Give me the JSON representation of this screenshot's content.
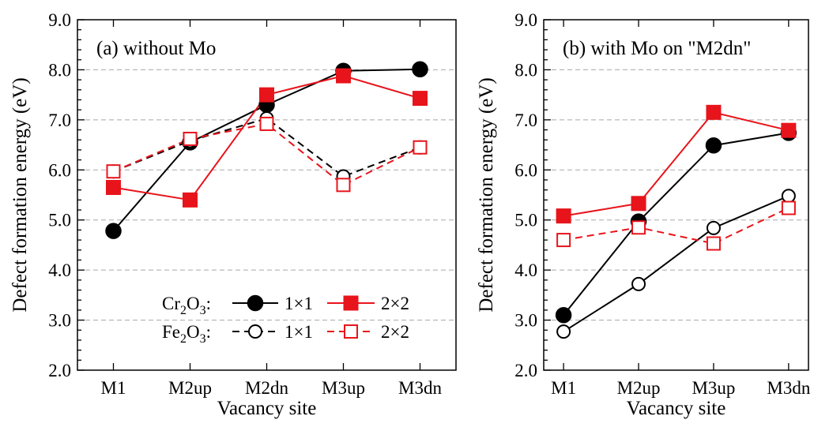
{
  "chart_data": [
    {
      "type": "line",
      "title": "(a) without Mo",
      "xlabel": "Vacancy site",
      "ylabel": "Defect formation energy (eV)",
      "categories": [
        "M1",
        "M2up",
        "M2dn",
        "M3up",
        "M3dn"
      ],
      "ylim": [
        2.0,
        9.0
      ],
      "yticks": [
        "2.0",
        "3.0",
        "4.0",
        "5.0",
        "6.0",
        "7.0",
        "8.0",
        "9.0"
      ],
      "grid": "horizontal dashed",
      "legend_position": "bottom-right",
      "series": [
        {
          "name": "1×1",
          "group": "Cr2O3",
          "color": "#000000",
          "marker": "filled-circle",
          "line": "solid",
          "values": [
            4.78,
            6.55,
            7.3,
            7.98,
            8.01
          ]
        },
        {
          "name": "2×2",
          "group": "Cr2O3",
          "color": "#e8141b",
          "marker": "filled-square",
          "line": "solid",
          "values": [
            5.65,
            5.4,
            7.5,
            7.88,
            7.43
          ]
        },
        {
          "name": "1×1",
          "group": "Fe2O3",
          "color": "#000000",
          "marker": "open-circle",
          "line": "dashed",
          "values": [
            5.97,
            6.58,
            7.03,
            5.87,
            6.45
          ]
        },
        {
          "name": "2×2",
          "group": "Fe2O3",
          "color": "#e8141b",
          "marker": "open-square",
          "line": "dashed",
          "values": [
            5.97,
            6.62,
            6.92,
            5.7,
            6.45
          ]
        }
      ],
      "legend": {
        "rows": [
          {
            "prefix": "Cr",
            "sub": "2",
            "mid": "O",
            "sub2": "3",
            "suffix": ":",
            "entries": [
              "1×1",
              "2×2"
            ]
          },
          {
            "prefix": "Fe",
            "sub": "2",
            "mid": "O",
            "sub2": "3",
            "suffix": ":",
            "entries": [
              "1×1",
              "2×2"
            ]
          }
        ]
      }
    },
    {
      "type": "line",
      "title": "(b) with Mo on \"M2dn\"",
      "xlabel": "Vacancy site",
      "ylabel": "Defect formation energy (eV)",
      "categories": [
        "M1",
        "M2up",
        "M3up",
        "M3dn"
      ],
      "ylim": [
        2.0,
        9.0
      ],
      "yticks": [
        "2.0",
        "3.0",
        "4.0",
        "5.0",
        "6.0",
        "7.0",
        "8.0",
        "9.0"
      ],
      "grid": "horizontal dashed",
      "series": [
        {
          "name": "1×1",
          "group": "Cr2O3",
          "color": "#000000",
          "marker": "filled-circle",
          "line": "solid",
          "values": [
            3.1,
            4.97,
            6.49,
            6.74
          ]
        },
        {
          "name": "2×2",
          "group": "Cr2O3",
          "color": "#e8141b",
          "marker": "filled-square",
          "line": "solid",
          "values": [
            5.08,
            5.33,
            7.15,
            6.79
          ]
        },
        {
          "name": "1×1",
          "group": "Fe2O3",
          "color": "#000000",
          "marker": "open-circle",
          "line": "solid",
          "values": [
            2.77,
            3.72,
            4.84,
            5.48
          ]
        },
        {
          "name": "2×2",
          "group": "Fe2O3",
          "color": "#e8141b",
          "marker": "open-square",
          "line": "dashed",
          "values": [
            4.6,
            4.85,
            4.53,
            5.24
          ]
        }
      ]
    }
  ]
}
